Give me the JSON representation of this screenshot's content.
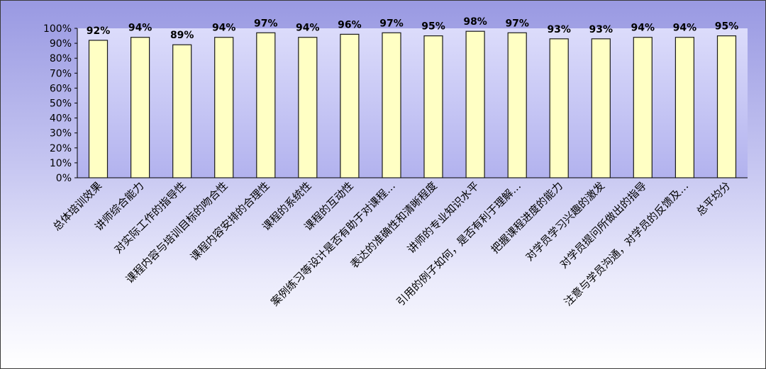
{
  "chart_data": {
    "type": "bar",
    "categories": [
      "总体培训效果",
      "讲师综合能力",
      "对实际工作的指导性",
      "课程内容与培训目标的吻合性",
      "课程内容安排的合理性",
      "课程的系统性",
      "课程的互动性",
      "案例练习等设计是否有助于对课程…",
      "表达的准确性和清晰程度",
      "讲师的专业知识水平",
      "引用的例子如何，是否有利于理解…",
      "把握课程进度的能力",
      "对学员学习兴趣的激发",
      "对学员提问所做出的指导",
      "注意与学员沟通，对学员的反馈及…",
      "总平均分"
    ],
    "values": [
      92,
      94,
      89,
      94,
      97,
      94,
      96,
      97,
      95,
      98,
      97,
      93,
      93,
      94,
      94,
      95
    ],
    "data_labels": [
      "92%",
      "94%",
      "89%",
      "94%",
      "97%",
      "94%",
      "96%",
      "97%",
      "95%",
      "98%",
      "97%",
      "93%",
      "93%",
      "94%",
      "94%",
      "95%"
    ],
    "y_ticks": [
      "0%",
      "10%",
      "20%",
      "30%",
      "40%",
      "50%",
      "60%",
      "70%",
      "80%",
      "90%",
      "100%"
    ],
    "ylim": [
      0,
      100
    ],
    "title": "",
    "xlabel": "",
    "ylabel": "",
    "grid": false,
    "legend": "none",
    "colors": {
      "bar_fill": "#ffffc4",
      "bar_stroke": "#1a1a1a",
      "plot_bg_top": "#dcdcfb",
      "plot_bg_bottom": "#b2b2ee",
      "background_top": "#9999e2",
      "background_bottom": "#ffffff"
    }
  }
}
